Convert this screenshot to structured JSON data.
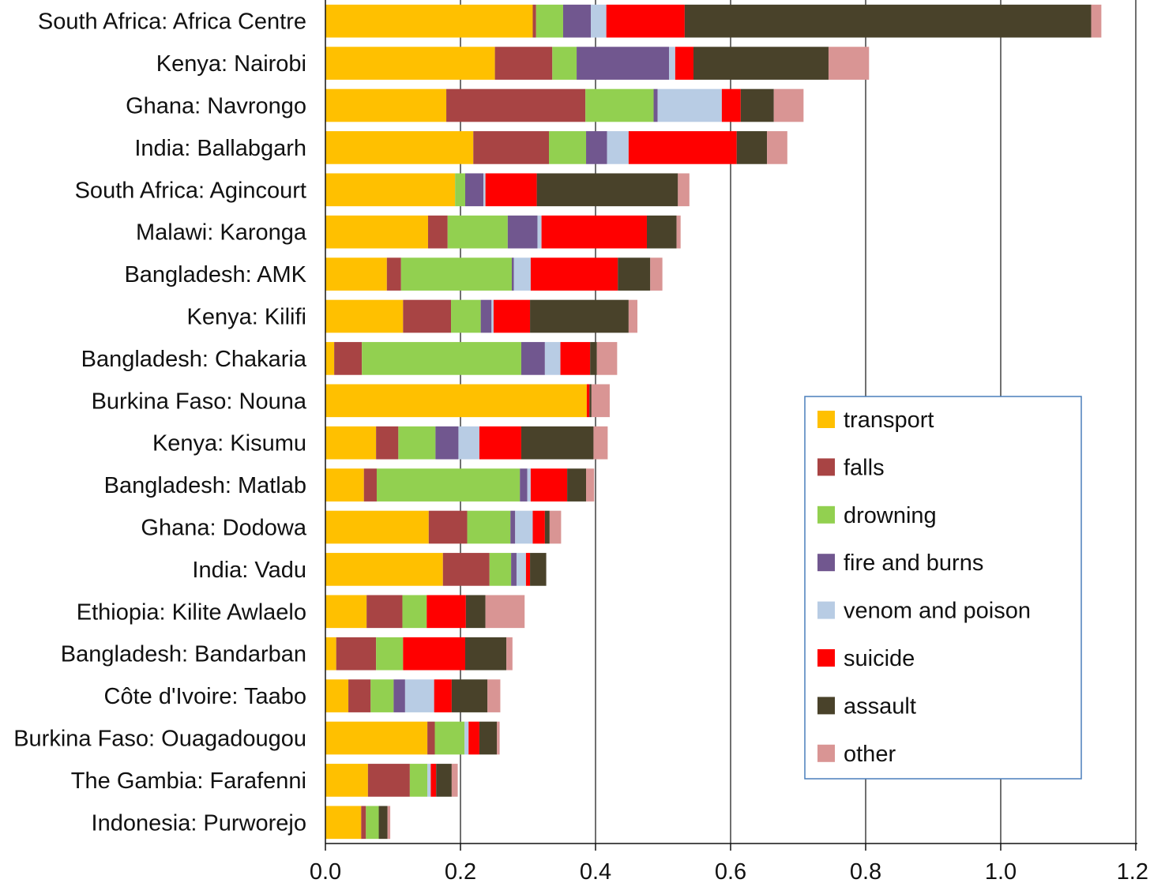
{
  "chart_data": {
    "type": "bar",
    "orientation": "horizontal",
    "stacked": true,
    "xlim": [
      0,
      1.2
    ],
    "x_ticks": [
      "0.0",
      "0.2",
      "0.4",
      "0.6",
      "0.8",
      "1.0",
      "1.2"
    ],
    "grid": "vertical",
    "legend_position": "lower-right",
    "categories": [
      "South Africa: Africa Centre",
      "Kenya: Nairobi",
      "Ghana: Navrongo",
      "India: Ballabgarh",
      "South Africa: Agincourt",
      "Malawi: Karonga",
      "Bangladesh: AMK",
      "Kenya: Kilifi",
      "Bangladesh: Chakaria",
      "Burkina Faso: Nouna",
      "Kenya: Kisumu",
      "Bangladesh: Matlab",
      "Ghana: Dodowa",
      "India: Vadu",
      "Ethiopia: Kilite Awlaelo",
      "Bangladesh: Bandarban",
      "Côte d'Ivoire: Taabo",
      "Burkina Faso: Ouagadougou",
      "The Gambia: Farafenni",
      "Indonesia: Purworejo"
    ],
    "series": [
      {
        "name": "transport",
        "color": "#FFC000",
        "values": [
          0.307,
          0.251,
          0.179,
          0.219,
          0.192,
          0.152,
          0.091,
          0.115,
          0.013,
          0.387,
          0.075,
          0.057,
          0.153,
          0.174,
          0.061,
          0.016,
          0.034,
          0.151,
          0.063,
          0.053
        ]
      },
      {
        "name": "falls",
        "color": "#A84444",
        "values": [
          0.005,
          0.085,
          0.206,
          0.112,
          0.0,
          0.029,
          0.021,
          0.071,
          0.041,
          0.0,
          0.033,
          0.019,
          0.057,
          0.069,
          0.053,
          0.059,
          0.033,
          0.011,
          0.062,
          0.007
        ]
      },
      {
        "name": "drowning",
        "color": "#92D050",
        "values": [
          0.04,
          0.036,
          0.101,
          0.055,
          0.015,
          0.089,
          0.164,
          0.044,
          0.236,
          0.0,
          0.055,
          0.212,
          0.064,
          0.032,
          0.036,
          0.04,
          0.034,
          0.044,
          0.026,
          0.019
        ]
      },
      {
        "name": "fire and burns",
        "color": "#71578F",
        "values": [
          0.041,
          0.137,
          0.006,
          0.031,
          0.027,
          0.044,
          0.003,
          0.016,
          0.035,
          0.0,
          0.034,
          0.011,
          0.007,
          0.008,
          0.0,
          0.0,
          0.017,
          0.0,
          0.0,
          0.0
        ]
      },
      {
        "name": "venom and poison",
        "color": "#B8CCE4",
        "values": [
          0.023,
          0.009,
          0.095,
          0.032,
          0.003,
          0.006,
          0.025,
          0.003,
          0.023,
          0.0,
          0.031,
          0.005,
          0.026,
          0.014,
          0.0,
          0.0,
          0.043,
          0.006,
          0.005,
          0.0
        ]
      },
      {
        "name": "suicide",
        "color": "#FF0000",
        "values": [
          0.116,
          0.027,
          0.028,
          0.16,
          0.076,
          0.156,
          0.129,
          0.054,
          0.044,
          0.004,
          0.062,
          0.054,
          0.018,
          0.006,
          0.058,
          0.092,
          0.026,
          0.016,
          0.008,
          0.0
        ]
      },
      {
        "name": "assault",
        "color": "#49422A",
        "values": [
          0.602,
          0.2,
          0.049,
          0.045,
          0.209,
          0.044,
          0.048,
          0.146,
          0.01,
          0.003,
          0.107,
          0.028,
          0.007,
          0.024,
          0.029,
          0.061,
          0.053,
          0.026,
          0.023,
          0.013
        ]
      },
      {
        "name": "other",
        "color": "#D99594",
        "values": [
          0.015,
          0.06,
          0.044,
          0.03,
          0.017,
          0.006,
          0.018,
          0.013,
          0.03,
          0.027,
          0.021,
          0.012,
          0.017,
          0.0,
          0.058,
          0.009,
          0.019,
          0.004,
          0.009,
          0.004
        ]
      }
    ]
  }
}
